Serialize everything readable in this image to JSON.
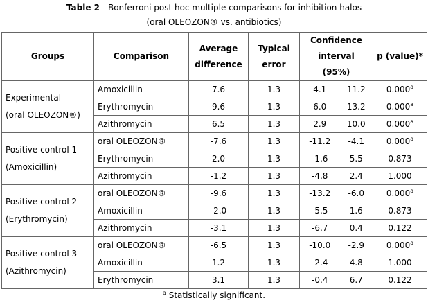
{
  "title": {
    "label": "Table 2",
    "line1": " - Bonferroni post hoc multiple comparisons for inhibition halos",
    "line2": "(oral OLEOZON® vs. antibiotics)"
  },
  "table": {
    "headers": [
      "Groups",
      "Comparison",
      "Average difference",
      "Typical error",
      "Confidence interval (95%)",
      "p (value)*"
    ],
    "groups": [
      {
        "name": [
          "Experimental",
          "(oral OLEOZON®)"
        ],
        "rows": [
          {
            "comparison": "Amoxicillin",
            "average_difference": "7.6",
            "typical_error": "1.3",
            "ci_low": "4.1",
            "ci_high": "11.2",
            "p": {
              "value": "0.000",
              "note": "a"
            }
          },
          {
            "comparison": "Erythromycin",
            "average_difference": "9.6",
            "typical_error": "1.3",
            "ci_low": "6.0",
            "ci_high": "13.2",
            "p": {
              "value": "0.000",
              "note": "a"
            }
          },
          {
            "comparison": "Azithromycin",
            "average_difference": "6.5",
            "typical_error": "1.3",
            "ci_low": "2.9",
            "ci_high": "10.0",
            "p": {
              "value": "0.000",
              "note": "a"
            }
          }
        ]
      },
      {
        "name": [
          "Positive control 1",
          "(Amoxicillin)"
        ],
        "rows": [
          {
            "comparison": "oral OLEOZON®",
            "average_difference": "-7.6",
            "typical_error": "1.3",
            "ci_low": "-11.2",
            "ci_high": "-4.1",
            "p": {
              "value": "0.000",
              "note": "a"
            }
          },
          {
            "comparison": "Erythromycin",
            "average_difference": "2.0",
            "typical_error": "1.3",
            "ci_low": "-1.6",
            "ci_high": "5.5",
            "p": {
              "value": "0.873"
            }
          },
          {
            "comparison": "Azithromycin",
            "average_difference": "-1.2",
            "typical_error": "1.3",
            "ci_low": "-4.8",
            "ci_high": "2.4",
            "p": {
              "value": "1.000"
            }
          }
        ]
      },
      {
        "name": [
          "Positive control 2",
          "(Erythromycin)"
        ],
        "rows": [
          {
            "comparison": "oral OLEOZON®",
            "average_difference": "-9.6",
            "typical_error": "1.3",
            "ci_low": "-13.2",
            "ci_high": "-6.0",
            "p": {
              "value": "0.000",
              "note": "a"
            }
          },
          {
            "comparison": "Amoxicillin",
            "average_difference": "-2.0",
            "typical_error": "1.3",
            "ci_low": "-5.5",
            "ci_high": "1.6",
            "p": {
              "value": "0.873"
            }
          },
          {
            "comparison": "Azithromycin",
            "average_difference": "-3.1",
            "typical_error": "1.3",
            "ci_low": "-6.7",
            "ci_high": "0.4",
            "p": {
              "value": "0.122"
            }
          }
        ]
      },
      {
        "name": [
          "Positive control 3",
          "(Azithromycin)"
        ],
        "rows": [
          {
            "comparison": "oral OLEOZON®",
            "average_difference": "-6.5",
            "typical_error": "1.3",
            "ci_low": "-10.0",
            "ci_high": "-2.9",
            "p": {
              "value": "0.000",
              "note": "a"
            }
          },
          {
            "comparison": "Amoxicillin",
            "average_difference": "1.2",
            "typical_error": "1.3",
            "ci_low": "-2.4",
            "ci_high": "4.8",
            "p": {
              "value": "1.000"
            }
          },
          {
            "comparison": "Erythromycin",
            "average_difference": "3.1",
            "typical_error": "1.3",
            "ci_low": "-0.4",
            "ci_high": "6.7",
            "p": {
              "value": "0.122"
            }
          }
        ]
      }
    ]
  },
  "footnote": {
    "mark": "a",
    "text": "Statistically significant."
  }
}
